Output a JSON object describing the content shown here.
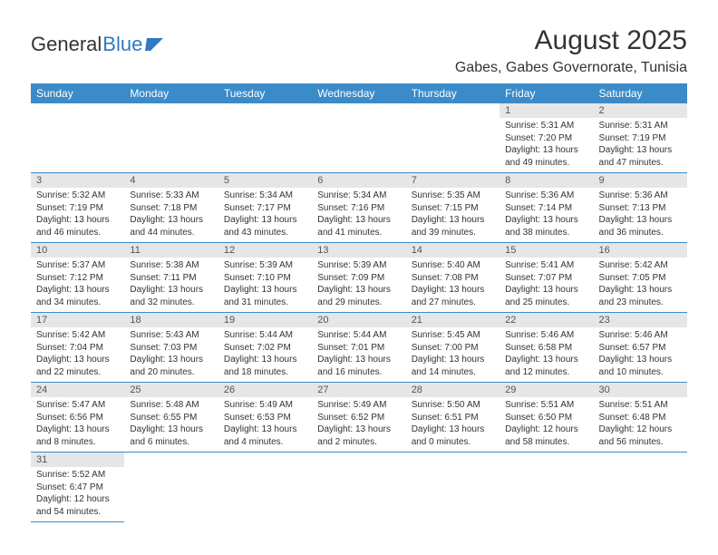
{
  "logo": {
    "part1": "General",
    "part2": "Blue"
  },
  "title": "August 2025",
  "location": "Gabes, Gabes Governorate, Tunisia",
  "colors": {
    "header_bg": "#3b8bc9",
    "daynum_bg": "#e6e6e6",
    "logo_blue": "#2f7ac0"
  },
  "weekdays": [
    "Sunday",
    "Monday",
    "Tuesday",
    "Wednesday",
    "Thursday",
    "Friday",
    "Saturday"
  ],
  "weeks": [
    [
      null,
      null,
      null,
      null,
      null,
      {
        "n": "1",
        "sr": "Sunrise: 5:31 AM",
        "ss": "Sunset: 7:20 PM",
        "dl": "Daylight: 13 hours and 49 minutes."
      },
      {
        "n": "2",
        "sr": "Sunrise: 5:31 AM",
        "ss": "Sunset: 7:19 PM",
        "dl": "Daylight: 13 hours and 47 minutes."
      }
    ],
    [
      {
        "n": "3",
        "sr": "Sunrise: 5:32 AM",
        "ss": "Sunset: 7:19 PM",
        "dl": "Daylight: 13 hours and 46 minutes."
      },
      {
        "n": "4",
        "sr": "Sunrise: 5:33 AM",
        "ss": "Sunset: 7:18 PM",
        "dl": "Daylight: 13 hours and 44 minutes."
      },
      {
        "n": "5",
        "sr": "Sunrise: 5:34 AM",
        "ss": "Sunset: 7:17 PM",
        "dl": "Daylight: 13 hours and 43 minutes."
      },
      {
        "n": "6",
        "sr": "Sunrise: 5:34 AM",
        "ss": "Sunset: 7:16 PM",
        "dl": "Daylight: 13 hours and 41 minutes."
      },
      {
        "n": "7",
        "sr": "Sunrise: 5:35 AM",
        "ss": "Sunset: 7:15 PM",
        "dl": "Daylight: 13 hours and 39 minutes."
      },
      {
        "n": "8",
        "sr": "Sunrise: 5:36 AM",
        "ss": "Sunset: 7:14 PM",
        "dl": "Daylight: 13 hours and 38 minutes."
      },
      {
        "n": "9",
        "sr": "Sunrise: 5:36 AM",
        "ss": "Sunset: 7:13 PM",
        "dl": "Daylight: 13 hours and 36 minutes."
      }
    ],
    [
      {
        "n": "10",
        "sr": "Sunrise: 5:37 AM",
        "ss": "Sunset: 7:12 PM",
        "dl": "Daylight: 13 hours and 34 minutes."
      },
      {
        "n": "11",
        "sr": "Sunrise: 5:38 AM",
        "ss": "Sunset: 7:11 PM",
        "dl": "Daylight: 13 hours and 32 minutes."
      },
      {
        "n": "12",
        "sr": "Sunrise: 5:39 AM",
        "ss": "Sunset: 7:10 PM",
        "dl": "Daylight: 13 hours and 31 minutes."
      },
      {
        "n": "13",
        "sr": "Sunrise: 5:39 AM",
        "ss": "Sunset: 7:09 PM",
        "dl": "Daylight: 13 hours and 29 minutes."
      },
      {
        "n": "14",
        "sr": "Sunrise: 5:40 AM",
        "ss": "Sunset: 7:08 PM",
        "dl": "Daylight: 13 hours and 27 minutes."
      },
      {
        "n": "15",
        "sr": "Sunrise: 5:41 AM",
        "ss": "Sunset: 7:07 PM",
        "dl": "Daylight: 13 hours and 25 minutes."
      },
      {
        "n": "16",
        "sr": "Sunrise: 5:42 AM",
        "ss": "Sunset: 7:05 PM",
        "dl": "Daylight: 13 hours and 23 minutes."
      }
    ],
    [
      {
        "n": "17",
        "sr": "Sunrise: 5:42 AM",
        "ss": "Sunset: 7:04 PM",
        "dl": "Daylight: 13 hours and 22 minutes."
      },
      {
        "n": "18",
        "sr": "Sunrise: 5:43 AM",
        "ss": "Sunset: 7:03 PM",
        "dl": "Daylight: 13 hours and 20 minutes."
      },
      {
        "n": "19",
        "sr": "Sunrise: 5:44 AM",
        "ss": "Sunset: 7:02 PM",
        "dl": "Daylight: 13 hours and 18 minutes."
      },
      {
        "n": "20",
        "sr": "Sunrise: 5:44 AM",
        "ss": "Sunset: 7:01 PM",
        "dl": "Daylight: 13 hours and 16 minutes."
      },
      {
        "n": "21",
        "sr": "Sunrise: 5:45 AM",
        "ss": "Sunset: 7:00 PM",
        "dl": "Daylight: 13 hours and 14 minutes."
      },
      {
        "n": "22",
        "sr": "Sunrise: 5:46 AM",
        "ss": "Sunset: 6:58 PM",
        "dl": "Daylight: 13 hours and 12 minutes."
      },
      {
        "n": "23",
        "sr": "Sunrise: 5:46 AM",
        "ss": "Sunset: 6:57 PM",
        "dl": "Daylight: 13 hours and 10 minutes."
      }
    ],
    [
      {
        "n": "24",
        "sr": "Sunrise: 5:47 AM",
        "ss": "Sunset: 6:56 PM",
        "dl": "Daylight: 13 hours and 8 minutes."
      },
      {
        "n": "25",
        "sr": "Sunrise: 5:48 AM",
        "ss": "Sunset: 6:55 PM",
        "dl": "Daylight: 13 hours and 6 minutes."
      },
      {
        "n": "26",
        "sr": "Sunrise: 5:49 AM",
        "ss": "Sunset: 6:53 PM",
        "dl": "Daylight: 13 hours and 4 minutes."
      },
      {
        "n": "27",
        "sr": "Sunrise: 5:49 AM",
        "ss": "Sunset: 6:52 PM",
        "dl": "Daylight: 13 hours and 2 minutes."
      },
      {
        "n": "28",
        "sr": "Sunrise: 5:50 AM",
        "ss": "Sunset: 6:51 PM",
        "dl": "Daylight: 13 hours and 0 minutes."
      },
      {
        "n": "29",
        "sr": "Sunrise: 5:51 AM",
        "ss": "Sunset: 6:50 PM",
        "dl": "Daylight: 12 hours and 58 minutes."
      },
      {
        "n": "30",
        "sr": "Sunrise: 5:51 AM",
        "ss": "Sunset: 6:48 PM",
        "dl": "Daylight: 12 hours and 56 minutes."
      }
    ],
    [
      {
        "n": "31",
        "sr": "Sunrise: 5:52 AM",
        "ss": "Sunset: 6:47 PM",
        "dl": "Daylight: 12 hours and 54 minutes."
      },
      null,
      null,
      null,
      null,
      null,
      null
    ]
  ]
}
